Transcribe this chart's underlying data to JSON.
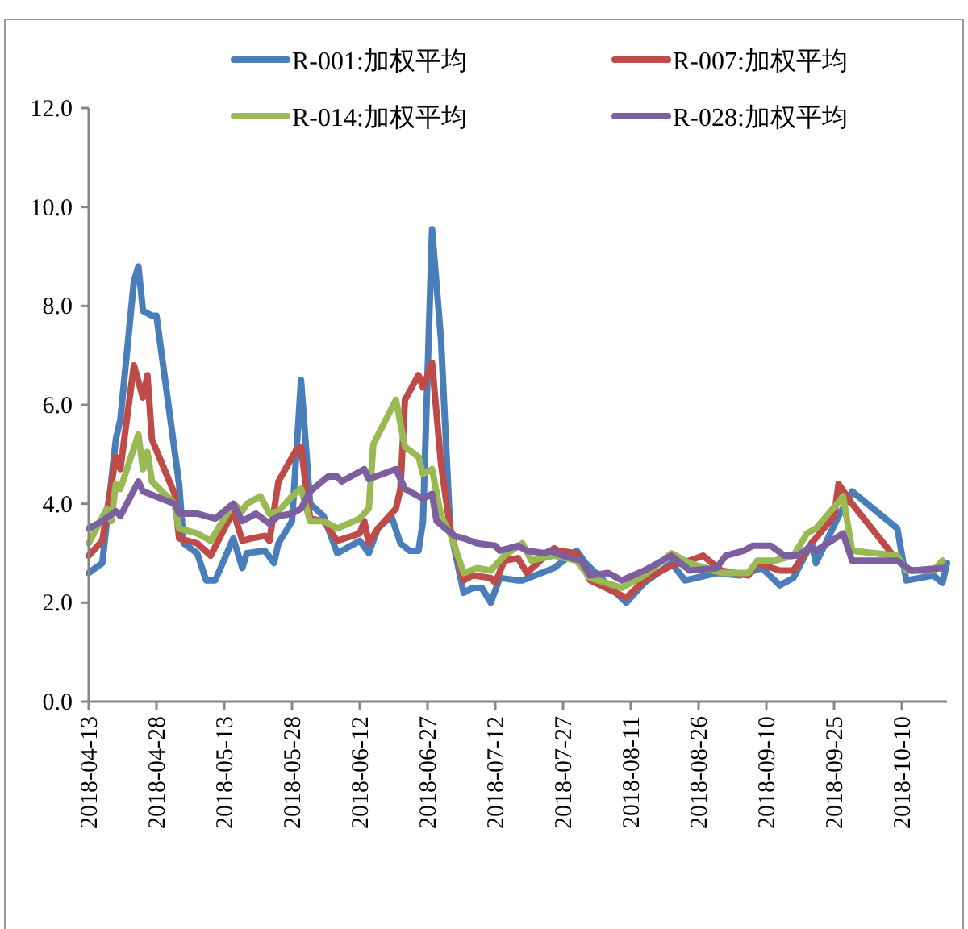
{
  "chart_data": {
    "type": "line",
    "xlim": [
      "2018-04-13",
      "2018-10-20"
    ],
    "ylim": [
      0,
      12
    ],
    "yticks": [
      {
        "value": 0,
        "label": "0.0"
      },
      {
        "value": 2,
        "label": "2.0"
      },
      {
        "value": 4,
        "label": "4.0"
      },
      {
        "value": 6,
        "label": "6.0"
      },
      {
        "value": 8,
        "label": "8.0"
      },
      {
        "value": 10,
        "label": "10.0"
      },
      {
        "value": 12,
        "label": "12.0"
      }
    ],
    "xticks": [
      {
        "value": "2018-04-13",
        "label": "2018-04-13"
      },
      {
        "value": "2018-04-28",
        "label": "2018-04-28"
      },
      {
        "value": "2018-05-13",
        "label": "2018-05-13"
      },
      {
        "value": "2018-05-28",
        "label": "2018-05-28"
      },
      {
        "value": "2018-06-12",
        "label": "2018-06-12"
      },
      {
        "value": "2018-06-27",
        "label": "2018-06-27"
      },
      {
        "value": "2018-07-12",
        "label": "2018-07-12"
      },
      {
        "value": "2018-07-27",
        "label": "2018-07-27"
      },
      {
        "value": "2018-08-11",
        "label": "2018-08-11"
      },
      {
        "value": "2018-08-26",
        "label": "2018-08-26"
      },
      {
        "value": "2018-09-10",
        "label": "2018-09-10"
      },
      {
        "value": "2018-09-25",
        "label": "2018-09-25"
      },
      {
        "value": "2018-10-10",
        "label": "2018-10-10"
      }
    ],
    "legend": "top",
    "grid": false,
    "series": [
      {
        "name": "R-001:加权平均",
        "color": "#4a7ebb",
        "x": [
          "2018-04-13",
          "2018-04-16",
          "2018-04-19",
          "2018-04-20",
          "2018-04-23",
          "2018-04-24",
          "2018-04-25",
          "2018-04-27",
          "2018-04-28",
          "2018-05-03",
          "2018-05-04",
          "2018-05-07",
          "2018-05-09",
          "2018-05-11",
          "2018-05-15",
          "2018-05-17",
          "2018-05-18",
          "2018-05-22",
          "2018-05-24",
          "2018-05-25",
          "2018-05-28",
          "2018-05-30",
          "2018-06-01",
          "2018-06-04",
          "2018-06-07",
          "2018-06-12",
          "2018-06-14",
          "2018-06-16",
          "2018-06-19",
          "2018-06-21",
          "2018-06-23",
          "2018-06-25",
          "2018-06-26",
          "2018-06-28",
          "2018-06-30",
          "2018-07-02",
          "2018-07-05",
          "2018-07-07",
          "2018-07-09",
          "2018-07-11",
          "2018-07-13",
          "2018-07-17",
          "2018-07-18",
          "2018-07-25",
          "2018-07-30",
          "2018-08-01",
          "2018-08-10",
          "2018-08-14",
          "2018-08-20",
          "2018-08-23",
          "2018-08-30",
          "2018-09-04",
          "2018-09-09",
          "2018-09-13",
          "2018-09-16",
          "2018-09-20",
          "2018-09-21",
          "2018-09-26",
          "2018-09-29",
          "2018-10-09",
          "2018-10-11",
          "2018-10-17",
          "2018-10-19",
          "2018-10-20"
        ],
        "values": [
          2.6,
          2.8,
          5.3,
          5.7,
          8.5,
          8.8,
          7.9,
          7.8,
          7.8,
          4.4,
          3.2,
          3.0,
          2.45,
          2.45,
          3.3,
          2.7,
          3.0,
          3.05,
          2.8,
          3.2,
          3.65,
          6.5,
          4.0,
          3.75,
          3.0,
          3.25,
          3.0,
          3.5,
          3.75,
          3.2,
          3.05,
          3.05,
          3.65,
          9.55,
          7.3,
          3.5,
          2.2,
          2.3,
          2.3,
          2.0,
          2.5,
          2.45,
          2.45,
          2.7,
          3.05,
          2.8,
          2.0,
          2.4,
          2.8,
          2.45,
          2.6,
          2.55,
          2.7,
          2.35,
          2.5,
          3.2,
          2.8,
          3.75,
          4.25,
          3.5,
          2.45,
          2.55,
          2.4,
          2.8
        ]
      },
      {
        "name": "R-007:加权平均",
        "color": "#be4b48",
        "x": [
          "2018-04-13",
          "2018-04-16",
          "2018-04-19",
          "2018-04-20",
          "2018-04-23",
          "2018-04-25",
          "2018-04-26",
          "2018-04-27",
          "2018-05-02",
          "2018-05-03",
          "2018-05-07",
          "2018-05-10",
          "2018-05-15",
          "2018-05-17",
          "2018-05-19",
          "2018-05-22",
          "2018-05-23",
          "2018-05-25",
          "2018-05-29",
          "2018-05-30",
          "2018-06-01",
          "2018-06-04",
          "2018-06-07",
          "2018-06-12",
          "2018-06-13",
          "2018-06-14",
          "2018-06-16",
          "2018-06-20",
          "2018-06-21",
          "2018-06-22",
          "2018-06-25",
          "2018-06-26",
          "2018-06-28",
          "2018-06-30",
          "2018-07-02",
          "2018-07-05",
          "2018-07-07",
          "2018-07-11",
          "2018-07-12",
          "2018-07-14",
          "2018-07-17",
          "2018-07-19",
          "2018-07-25",
          "2018-07-26",
          "2018-07-30",
          "2018-08-02",
          "2018-08-10",
          "2018-08-14",
          "2018-08-20",
          "2018-08-24",
          "2018-08-27",
          "2018-08-31",
          "2018-09-06",
          "2018-09-08",
          "2018-09-13",
          "2018-09-16",
          "2018-09-20",
          "2018-09-25",
          "2018-09-26",
          "2018-09-29",
          "2018-10-09",
          "2018-10-12",
          "2018-10-17",
          "2018-10-19"
        ],
        "values": [
          2.95,
          3.25,
          4.95,
          4.7,
          6.8,
          6.15,
          6.6,
          5.3,
          4.2,
          3.3,
          3.2,
          2.95,
          3.85,
          3.25,
          3.3,
          3.35,
          3.25,
          4.45,
          5.1,
          5.15,
          3.7,
          3.65,
          3.25,
          3.4,
          3.65,
          3.2,
          3.5,
          3.9,
          4.3,
          6.1,
          6.6,
          6.35,
          6.85,
          4.8,
          3.5,
          2.45,
          2.55,
          2.5,
          2.4,
          2.85,
          2.9,
          2.6,
          3.1,
          3.05,
          3.0,
          2.45,
          2.1,
          2.45,
          2.75,
          2.85,
          2.95,
          2.65,
          2.55,
          2.8,
          2.65,
          2.65,
          3.2,
          3.75,
          4.4,
          4.0,
          2.85,
          2.65,
          2.65,
          2.8
        ]
      },
      {
        "name": "R-014:加权平均",
        "color": "#98b954",
        "x": [
          "2018-04-13",
          "2018-04-17",
          "2018-04-18",
          "2018-04-19",
          "2018-04-20",
          "2018-04-24",
          "2018-04-25",
          "2018-04-26",
          "2018-04-27",
          "2018-05-02",
          "2018-05-03",
          "2018-05-07",
          "2018-05-10",
          "2018-05-15",
          "2018-05-17",
          "2018-05-18",
          "2018-05-21",
          "2018-05-23",
          "2018-05-25",
          "2018-05-28",
          "2018-05-30",
          "2018-06-01",
          "2018-06-04",
          "2018-06-07",
          "2018-06-12",
          "2018-06-14",
          "2018-06-15",
          "2018-06-20",
          "2018-06-22",
          "2018-06-25",
          "2018-06-26",
          "2018-06-28",
          "2018-06-30",
          "2018-07-02",
          "2018-07-05",
          "2018-07-08",
          "2018-07-11",
          "2018-07-14",
          "2018-07-18",
          "2018-07-20",
          "2018-07-25",
          "2018-07-30",
          "2018-08-02",
          "2018-08-09",
          "2018-08-14",
          "2018-08-20",
          "2018-08-24",
          "2018-08-31",
          "2018-09-06",
          "2018-09-08",
          "2018-09-12",
          "2018-09-16",
          "2018-09-19",
          "2018-09-21",
          "2018-09-27",
          "2018-09-29",
          "2018-10-09",
          "2018-10-11",
          "2018-10-17",
          "2018-10-19"
        ],
        "values": [
          3.2,
          3.9,
          3.65,
          4.4,
          4.3,
          5.4,
          4.7,
          5.05,
          4.45,
          4.0,
          3.5,
          3.4,
          3.25,
          4.0,
          3.85,
          4.0,
          4.15,
          3.8,
          3.85,
          4.15,
          4.3,
          3.65,
          3.65,
          3.5,
          3.7,
          3.9,
          5.2,
          6.1,
          5.15,
          4.95,
          4.6,
          4.7,
          3.75,
          3.4,
          2.6,
          2.7,
          2.65,
          2.95,
          3.2,
          2.85,
          2.95,
          2.85,
          2.5,
          2.3,
          2.55,
          3.0,
          2.8,
          2.6,
          2.6,
          2.85,
          2.85,
          2.95,
          3.4,
          3.5,
          4.15,
          3.05,
          2.95,
          2.65,
          2.65,
          2.85
        ]
      },
      {
        "name": "R-028:加权平均",
        "color": "#7d5fa0",
        "x": [
          "2018-04-13",
          "2018-04-16",
          "2018-04-19",
          "2018-04-20",
          "2018-04-24",
          "2018-04-25",
          "2018-05-02",
          "2018-05-03",
          "2018-05-07",
          "2018-05-11",
          "2018-05-15",
          "2018-05-17",
          "2018-05-20",
          "2018-05-23",
          "2018-05-25",
          "2018-05-28",
          "2018-05-30",
          "2018-06-01",
          "2018-06-05",
          "2018-06-07",
          "2018-06-08",
          "2018-06-13",
          "2018-06-14",
          "2018-06-20",
          "2018-06-22",
          "2018-06-26",
          "2018-06-28",
          "2018-06-29",
          "2018-07-03",
          "2018-07-05",
          "2018-07-08",
          "2018-07-12",
          "2018-07-13",
          "2018-07-17",
          "2018-07-19",
          "2018-07-23",
          "2018-07-24",
          "2018-07-27",
          "2018-07-31",
          "2018-08-02",
          "2018-08-06",
          "2018-08-09",
          "2018-08-14",
          "2018-08-18",
          "2018-08-20",
          "2018-08-24",
          "2018-08-30",
          "2018-09-01",
          "2018-09-05",
          "2018-09-07",
          "2018-09-11",
          "2018-09-14",
          "2018-09-17",
          "2018-09-20",
          "2018-09-21",
          "2018-09-27",
          "2018-09-29",
          "2018-10-09",
          "2018-10-12",
          "2018-10-19"
        ],
        "values": [
          3.5,
          3.65,
          3.85,
          3.75,
          4.45,
          4.25,
          4.0,
          3.8,
          3.8,
          3.7,
          4.0,
          3.65,
          3.8,
          3.6,
          3.75,
          3.8,
          3.9,
          4.25,
          4.55,
          4.55,
          4.45,
          4.7,
          4.5,
          4.7,
          4.3,
          4.1,
          4.2,
          3.65,
          3.35,
          3.3,
          3.2,
          3.15,
          3.05,
          3.15,
          3.05,
          3.0,
          3.05,
          2.95,
          2.85,
          2.55,
          2.6,
          2.45,
          2.65,
          2.85,
          2.95,
          2.65,
          2.7,
          2.95,
          3.05,
          3.15,
          3.15,
          2.95,
          2.95,
          3.15,
          3.05,
          3.4,
          2.85,
          2.85,
          2.65,
          2.7
        ]
      }
    ]
  }
}
